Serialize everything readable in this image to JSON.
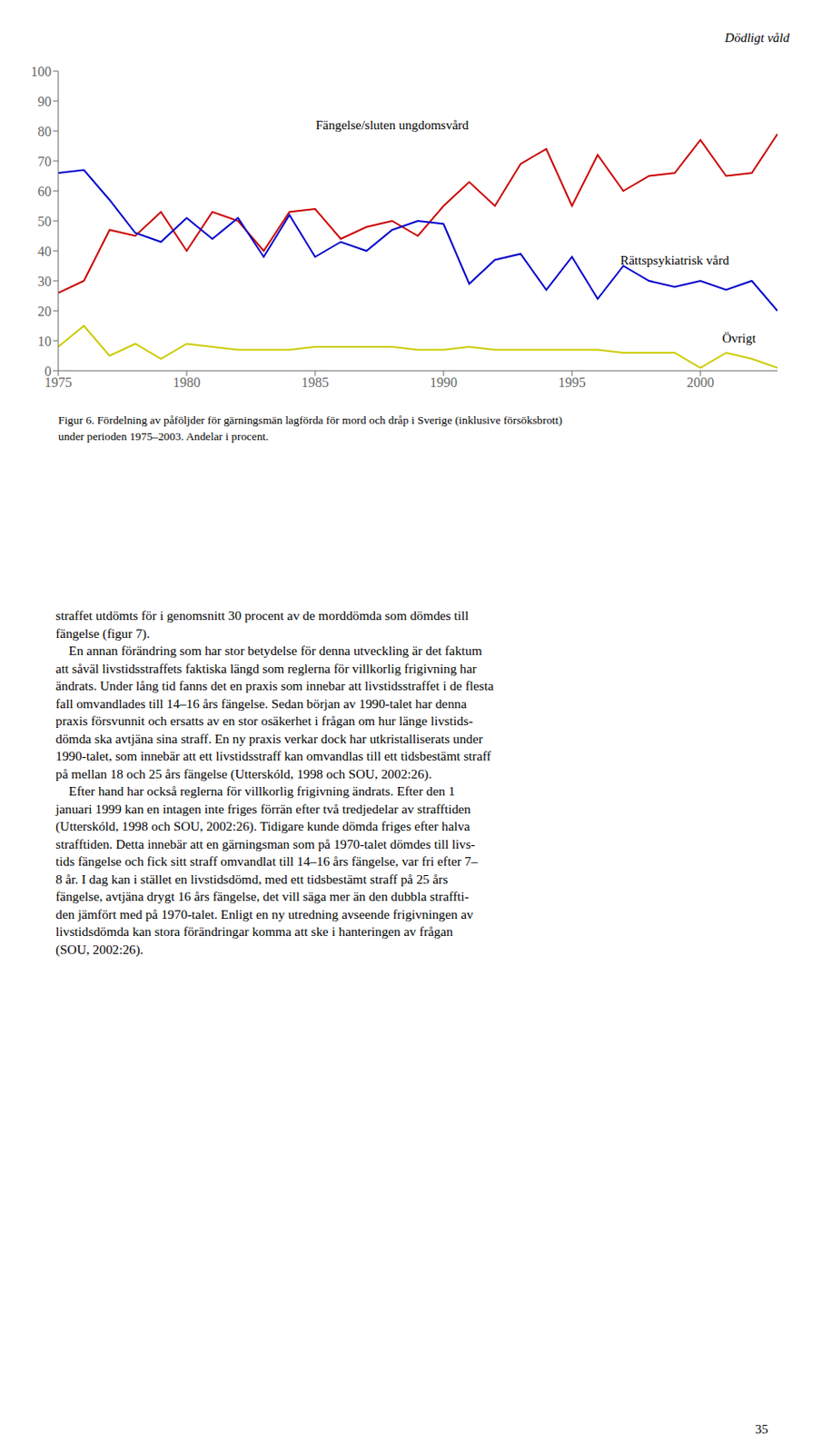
{
  "chart_data": {
    "type": "line",
    "title": [
      "Figur 6. Fördelning av påföljder för gärningsmän lagförda för mord och dråp i Sverige (inklusive försöksbrott)",
      "under perioden 1975–2003. Andelar i procent."
    ],
    "x": [
      1975,
      1976,
      1977,
      1978,
      1979,
      1980,
      1981,
      1982,
      1983,
      1984,
      1985,
      1986,
      1987,
      1988,
      1989,
      1990,
      1991,
      1992,
      1993,
      1994,
      1995,
      1996,
      1997,
      1998,
      1999,
      2000,
      2001,
      2002,
      2003
    ],
    "series": [
      {
        "color": "#cc0000",
        "values": [
          26,
          30,
          47,
          45,
          53,
          40,
          53,
          50,
          40,
          53,
          54,
          44,
          48,
          50,
          45,
          55,
          63,
          55,
          69,
          74,
          55,
          72,
          60,
          65,
          66,
          77,
          65,
          66,
          79
        ]
      },
      {
        "color": "#0000cc",
        "values": [
          66,
          67,
          57,
          46,
          43,
          51,
          44,
          51,
          38,
          52,
          38,
          43,
          40,
          47,
          50,
          49,
          29,
          37,
          39,
          27,
          38,
          24,
          35,
          30,
          28,
          30,
          27,
          30,
          20
        ]
      },
      {
        "color": "#cccc00",
        "values": [
          8,
          15,
          5,
          9,
          4,
          9,
          8,
          7,
          7,
          7,
          8,
          8,
          8,
          8,
          7,
          7,
          8,
          7,
          7,
          7,
          7,
          7,
          6,
          6,
          6,
          1,
          6,
          4,
          1
        ]
      }
    ],
    "xlim": [
      1975,
      2003
    ],
    "xticks": [
      1975,
      1980,
      1985,
      1990,
      1995,
      2000
    ],
    "ylim": [
      0,
      100
    ],
    "yticks": [
      0,
      10,
      20,
      30,
      40,
      50,
      60,
      70,
      80,
      90,
      100
    ],
    "grid": false,
    "annotations": [
      {
        "text": "Fängelse/sluten ungdomsvård",
        "x": 1988,
        "y": 82
      },
      {
        "text": "Rättspsykiatrisk vård",
        "x": 1999,
        "y": 37
      },
      {
        "text": "Övrigt",
        "x": 2001.5,
        "y": 11
      }
    ]
  },
  "page": {
    "header": "Dödligt våld",
    "body_text": [
      "straffet utdömts för i genomsnitt 30 procent av de morddömda som dömdes till",
      "fängelse (figur 7).",
      "    En annan förändring som har stor betydelse för denna utveckling är det faktum",
      "att såväl livstidsstraffets faktiska längd som reglerna för villkorlig frigivning har",
      "ändrats. Under lång tid fanns det en praxis som innebar att livstidsstraffet i de flesta",
      "fall omvandlades till 14–16 års fängelse. Sedan början av 1990-talet har denna",
      "praxis försvunnit och ersatts av en stor osäkerhet i frågan om hur länge livstids-",
      "dömda ska avtjäna sina straff. En ny praxis verkar dock har utkristalliserats under",
      "1990-talet, som innebär att ett livstidsstraff kan omvandlas till ett tidsbestämt straff",
      "på mellan 18 och 25 års fängelse (Utterskóld, 1998 och SOU, 2002:26).",
      "    Efter hand har också reglerna för villkorlig frigivning ändrats. Efter den 1",
      "januari 1999 kan en intagen inte friges förrän efter två tredjedelar av strafftiden",
      "(Utterskóld, 1998 och SOU, 2002:26). Tidigare kunde dömda friges efter halva",
      "strafftiden. Detta innebär att en gärningsman som på 1970-talet dömdes till livs-",
      "tids fängelse och fick sitt straff omvandlat till 14–16 års fängelse, var fri efter 7–",
      "8 år. I dag kan i stället en livstidsdömd, med ett tidsbestämt straff på 25 års",
      "fängelse, avtjäna drygt 16 års fängelse, det vill säga mer än den dubbla straffti-",
      "den jämfört med på 1970-talet. Enligt en ny utredning avseende frigivningen av",
      "livstidsdömda kan stora förändringar komma att ske i hanteringen av frågan",
      "(SOU, 2002:26)."
    ],
    "page_number": "35"
  }
}
